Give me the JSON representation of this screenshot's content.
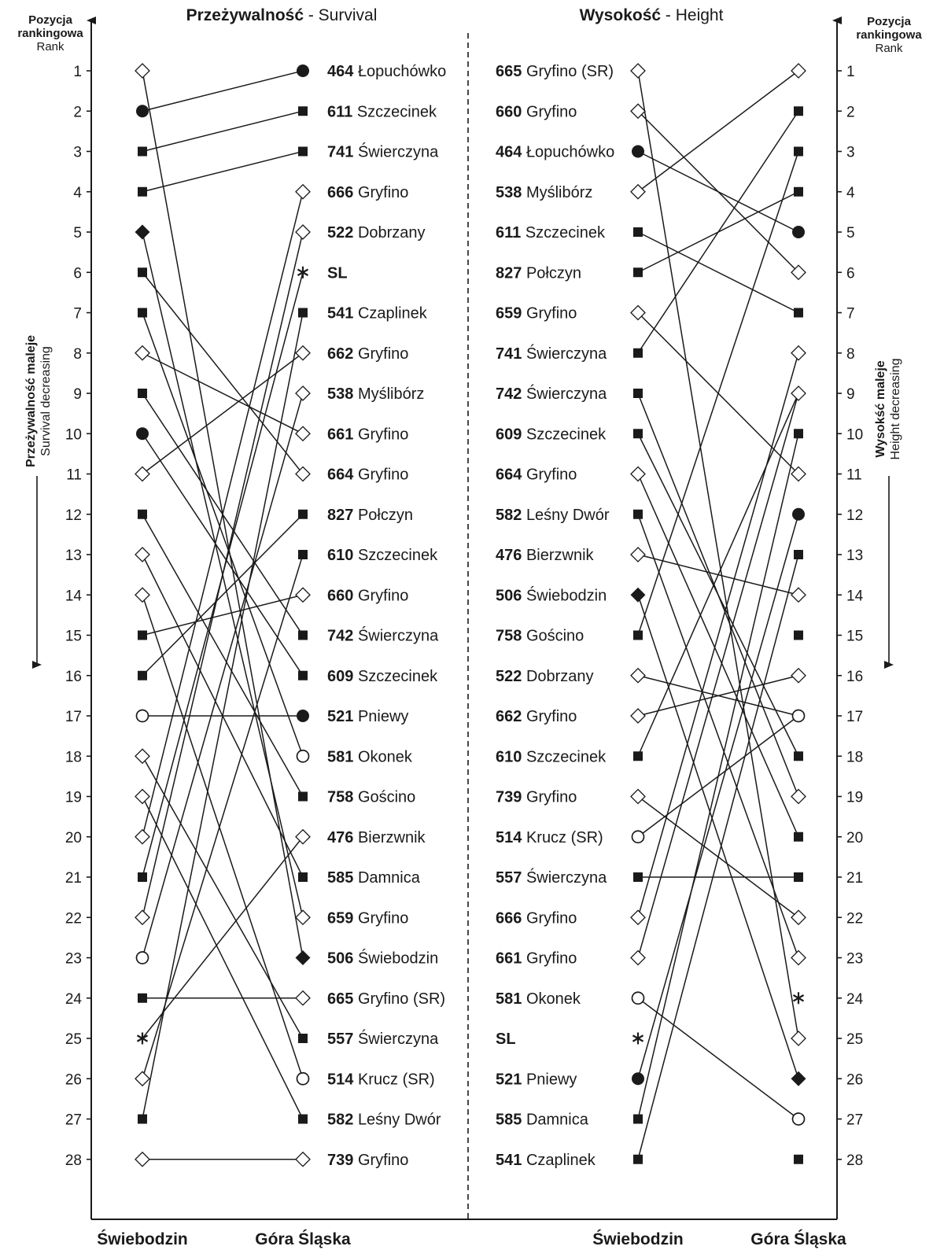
{
  "panels": [
    {
      "title_bold": "Przeżywalność",
      "title_normal": " - Survival",
      "left_column": "Świebodzin",
      "right_column": "Góra Śląska",
      "left_markers": [
        "diamond-open",
        "circle-filled",
        "square-filled",
        "square-filled",
        "diamond-filled",
        "square-filled",
        "square-filled",
        "diamond-open",
        "square-filled",
        "circle-filled",
        "diamond-open",
        "square-filled",
        "diamond-open",
        "diamond-open",
        "square-filled",
        "square-filled",
        "circle-open",
        "diamond-open",
        "diamond-open",
        "diamond-open",
        "square-filled",
        "diamond-open",
        "circle-open",
        "square-filled",
        "asterisk",
        "diamond-open",
        "square-filled",
        "diamond-open"
      ],
      "right_markers": [
        "circle-filled",
        "square-filled",
        "square-filled",
        "diamond-open",
        "diamond-open",
        "asterisk",
        "square-filled",
        "diamond-open",
        "diamond-open",
        "diamond-open",
        "diamond-open",
        "square-filled",
        "square-filled",
        "diamond-open",
        "square-filled",
        "square-filled",
        "circle-filled",
        "circle-open",
        "square-filled",
        "diamond-open",
        "square-filled",
        "diamond-open",
        "diamond-filled",
        "diamond-open",
        "square-filled",
        "circle-open",
        "square-filled",
        "diamond-open"
      ],
      "labels": [
        {
          "id": "464",
          "name": "Łopuchówko"
        },
        {
          "id": "611",
          "name": "Szczecinek"
        },
        {
          "id": "741",
          "name": "Świerczyna"
        },
        {
          "id": "666",
          "name": "Gryfino"
        },
        {
          "id": "522",
          "name": "Dobrzany"
        },
        {
          "id": "SL",
          "name": ""
        },
        {
          "id": "541",
          "name": "Czaplinek"
        },
        {
          "id": "662",
          "name": "Gryfino"
        },
        {
          "id": "538",
          "name": "Myślibórz"
        },
        {
          "id": "661",
          "name": "Gryfino"
        },
        {
          "id": "664",
          "name": "Gryfino"
        },
        {
          "id": "827",
          "name": "Połczyn"
        },
        {
          "id": "610",
          "name": "Szczecinek"
        },
        {
          "id": "660",
          "name": "Gryfino"
        },
        {
          "id": "742",
          "name": "Świerczyna"
        },
        {
          "id": "609",
          "name": "Szczecinek"
        },
        {
          "id": "521",
          "name": "Pniewy"
        },
        {
          "id": "581",
          "name": "Okonek"
        },
        {
          "id": "758",
          "name": "Gościno"
        },
        {
          "id": "476",
          "name": "Bierzwnik"
        },
        {
          "id": "585",
          "name": "Damnica"
        },
        {
          "id": "659",
          "name": "Gryfino"
        },
        {
          "id": "506",
          "name": "Świebodzin"
        },
        {
          "id": "665",
          "name": "Gryfino (SR)"
        },
        {
          "id": "557",
          "name": "Świerczyna"
        },
        {
          "id": "514",
          "name": "Krucz (SR)"
        },
        {
          "id": "582",
          "name": "Leśny Dwór"
        },
        {
          "id": "739",
          "name": "Gryfino"
        }
      ],
      "links": [
        [
          1,
          23
        ],
        [
          2,
          1
        ],
        [
          3,
          2
        ],
        [
          4,
          3
        ],
        [
          5,
          22
        ],
        [
          6,
          11
        ],
        [
          7,
          18
        ],
        [
          8,
          10
        ],
        [
          9,
          15
        ],
        [
          10,
          16
        ],
        [
          11,
          8
        ],
        [
          12,
          19
        ],
        [
          13,
          21
        ],
        [
          14,
          26
        ],
        [
          15,
          14
        ],
        [
          16,
          12
        ],
        [
          17,
          17
        ],
        [
          18,
          25
        ],
        [
          19,
          27
        ],
        [
          20,
          4
        ],
        [
          21,
          6
        ],
        [
          22,
          5
        ],
        [
          23,
          9
        ],
        [
          24,
          24
        ],
        [
          25,
          20
        ],
        [
          26,
          13
        ],
        [
          27,
          7
        ],
        [
          28,
          28
        ]
      ]
    },
    {
      "title_bold": "Wysokość",
      "title_normal": " - Height",
      "left_column": "Świebodzin",
      "right_column": "Góra Śląska",
      "left_markers": [
        "diamond-open",
        "diamond-open",
        "circle-filled",
        "diamond-open",
        "square-filled",
        "square-filled",
        "diamond-open",
        "square-filled",
        "square-filled",
        "square-filled",
        "diamond-open",
        "square-filled",
        "diamond-open",
        "diamond-filled",
        "square-filled",
        "diamond-open",
        "diamond-open",
        "square-filled",
        "diamond-open",
        "circle-open",
        "square-filled",
        "diamond-open",
        "diamond-open",
        "circle-open",
        "asterisk",
        "circle-filled",
        "square-filled",
        "square-filled"
      ],
      "right_markers": [
        "diamond-open",
        "square-filled",
        "square-filled",
        "square-filled",
        "circle-filled",
        "diamond-open",
        "square-filled",
        "diamond-open",
        "diamond-open",
        "square-filled",
        "diamond-open",
        "circle-filled",
        "square-filled",
        "diamond-open",
        "square-filled",
        "diamond-open",
        "circle-open",
        "square-filled",
        "diamond-open",
        "square-filled",
        "square-filled",
        "diamond-open",
        "diamond-open",
        "asterisk",
        "diamond-open",
        "diamond-filled",
        "circle-open",
        "square-filled"
      ],
      "labels": [
        {
          "id": "665",
          "name": "Gryfino (SR)"
        },
        {
          "id": "660",
          "name": "Gryfino"
        },
        {
          "id": "464",
          "name": "Łopuchówko"
        },
        {
          "id": "538",
          "name": "Myślibórz"
        },
        {
          "id": "611",
          "name": "Szczecinek"
        },
        {
          "id": "827",
          "name": "Połczyn"
        },
        {
          "id": "659",
          "name": "Gryfino"
        },
        {
          "id": "741",
          "name": "Świerczyna"
        },
        {
          "id": "742",
          "name": "Świerczyna"
        },
        {
          "id": "609",
          "name": "Szczecinek"
        },
        {
          "id": "664",
          "name": "Gryfino"
        },
        {
          "id": "582",
          "name": "Leśny Dwór"
        },
        {
          "id": "476",
          "name": "Bierzwnik"
        },
        {
          "id": "506",
          "name": "Świebodzin"
        },
        {
          "id": "758",
          "name": "Gościno"
        },
        {
          "id": "522",
          "name": "Dobrzany"
        },
        {
          "id": "662",
          "name": "Gryfino"
        },
        {
          "id": "610",
          "name": "Szczecinek"
        },
        {
          "id": "739",
          "name": "Gryfino"
        },
        {
          "id": "514",
          "name": "Krucz (SR)"
        },
        {
          "id": "557",
          "name": "Świerczyna"
        },
        {
          "id": "666",
          "name": "Gryfino"
        },
        {
          "id": "661",
          "name": "Gryfino"
        },
        {
          "id": "581",
          "name": "Okonek"
        },
        {
          "id": "SL",
          "name": ""
        },
        {
          "id": "521",
          "name": "Pniewy"
        },
        {
          "id": "585",
          "name": "Damnica"
        },
        {
          "id": "541",
          "name": "Czaplinek"
        }
      ],
      "links": [
        [
          1,
          25
        ],
        [
          2,
          6
        ],
        [
          3,
          5
        ],
        [
          4,
          1
        ],
        [
          5,
          7
        ],
        [
          6,
          4
        ],
        [
          7,
          11
        ],
        [
          8,
          2
        ],
        [
          9,
          19
        ],
        [
          10,
          18
        ],
        [
          11,
          20
        ],
        [
          12,
          23
        ],
        [
          13,
          14
        ],
        [
          14,
          26
        ],
        [
          15,
          3
        ],
        [
          16,
          17
        ],
        [
          17,
          16
        ],
        [
          18,
          9
        ],
        [
          19,
          22
        ],
        [
          20,
          17
        ],
        [
          21,
          21
        ],
        [
          22,
          8
        ],
        [
          23,
          9
        ],
        [
          24,
          27
        ],
        [
          26,
          12
        ],
        [
          27,
          10
        ],
        [
          28,
          13
        ]
      ]
    }
  ],
  "rank_axis": {
    "ticks": [
      "1",
      "2",
      "3",
      "4",
      "5",
      "6",
      "7",
      "8",
      "9",
      "10",
      "11",
      "12",
      "13",
      "14",
      "15",
      "16",
      "17",
      "18",
      "19",
      "20",
      "21",
      "22",
      "23",
      "24",
      "25",
      "26",
      "27",
      "28"
    ],
    "left_header_bold": [
      "Pozycja",
      "rankingowa"
    ],
    "left_header_normal": "Rank",
    "right_header_bold": [
      "Pozycja",
      "rankingowa"
    ],
    "right_header_normal": "Rank",
    "left_side_bold": "Przeżywalność maleje",
    "left_side_normal": "Survival decreasing",
    "right_side_bold": "Wysokść maleje",
    "right_side_normal": "Height decreasing"
  }
}
